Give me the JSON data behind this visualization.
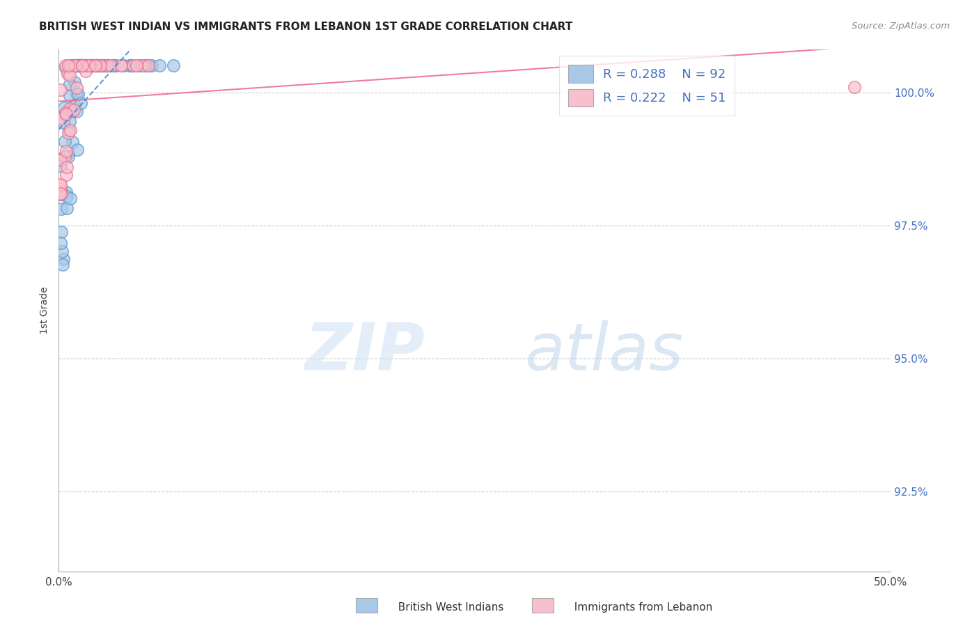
{
  "title": "BRITISH WEST INDIAN VS IMMIGRANTS FROM LEBANON 1ST GRADE CORRELATION CHART",
  "source": "Source: ZipAtlas.com",
  "ylabel": "1st Grade",
  "xlim": [
    0.0,
    0.5
  ],
  "ylim": [
    0.91,
    1.008
  ],
  "yticks": [
    0.925,
    0.95,
    0.975,
    1.0
  ],
  "yticklabels": [
    "92.5%",
    "95.0%",
    "97.5%",
    "100.0%"
  ],
  "grid_color": "#cccccc",
  "background_color": "#ffffff",
  "blue_color": "#a8c8e8",
  "blue_edge_color": "#5599cc",
  "pink_color": "#f8c0cc",
  "pink_edge_color": "#e87090",
  "blue_line_color": "#4488cc",
  "pink_line_color": "#ee6688",
  "legend_R_blue": "R = 0.288",
  "legend_N_blue": "N = 92",
  "legend_R_pink": "R = 0.222",
  "legend_N_pink": "N = 51",
  "legend_blue_patch": "#a8c8e8",
  "legend_pink_patch": "#f8c0cc",
  "label_color": "#4472c4",
  "title_color": "#222222",
  "source_color": "#888888"
}
